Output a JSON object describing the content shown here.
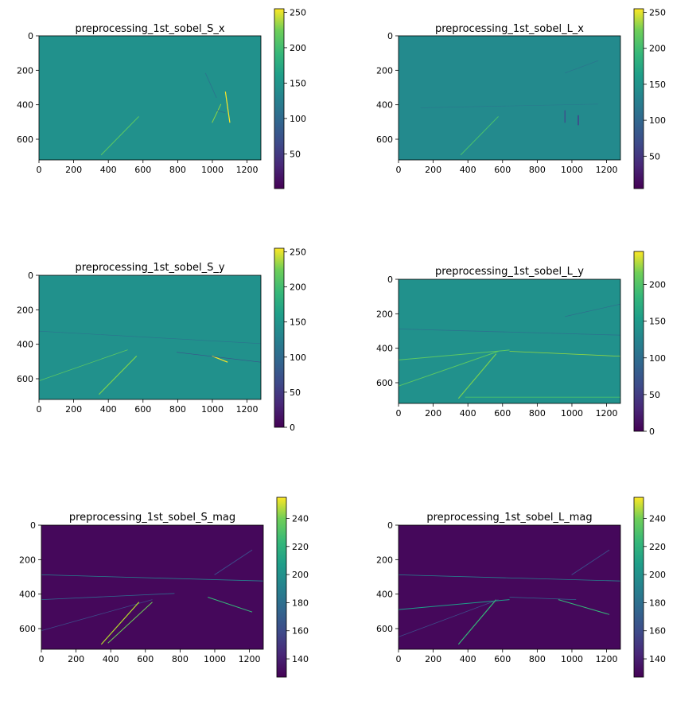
{
  "chart_data": [
    {
      "type": "heatmap",
      "title": "preprocessing_1st_sobel_S_x",
      "xticks": [
        0,
        200,
        400,
        600,
        800,
        1000,
        1200
      ],
      "yticks": [
        0,
        200,
        400,
        600
      ],
      "xlim": [
        0,
        1280
      ],
      "ylim": [
        720,
        0
      ],
      "colorbar": {
        "ticks": [
          50,
          100,
          150,
          200,
          250
        ],
        "range": [
          1,
          255
        ],
        "colormap": "viridis"
      },
      "background_value": 128,
      "features": [
        "faint lane edge diagonal",
        "car edges near x=1000-1100, y=400-500"
      ]
    },
    {
      "type": "heatmap",
      "title": "preprocessing_1st_sobel_L_x",
      "xticks": [
        0,
        200,
        400,
        600,
        800,
        1000,
        1200
      ],
      "yticks": [
        0,
        200,
        400,
        600
      ],
      "xlim": [
        0,
        1280
      ],
      "ylim": [
        720,
        0
      ],
      "colorbar": {
        "ticks": [
          50,
          100,
          150,
          200,
          250
        ],
        "range": [
          5,
          255
        ],
        "colormap": "viridis"
      },
      "background_value": 128,
      "features": [
        "faint lane edge diagonal",
        "vertical edges of cars near x=950-1050"
      ]
    },
    {
      "type": "heatmap",
      "title": "preprocessing_1st_sobel_S_y",
      "xticks": [
        0,
        200,
        400,
        600,
        800,
        1000,
        1200
      ],
      "yticks": [
        0,
        200,
        400,
        600
      ],
      "xlim": [
        0,
        1280
      ],
      "ylim": [
        720,
        0
      ],
      "colorbar": {
        "ticks": [
          0,
          50,
          100,
          150,
          200,
          250
        ],
        "range": [
          0,
          255
        ],
        "colormap": "viridis"
      },
      "background_value": 128,
      "features": [
        "horizon line",
        "lane edges",
        "car edges"
      ]
    },
    {
      "type": "heatmap",
      "title": "preprocessing_1st_sobel_L_y",
      "xticks": [
        0,
        200,
        400,
        600,
        800,
        1000,
        1200
      ],
      "yticks": [
        0,
        200,
        400,
        600
      ],
      "xlim": [
        0,
        1280
      ],
      "ylim": [
        720,
        0
      ],
      "colorbar": {
        "ticks": [
          0,
          50,
          100,
          150,
          200
        ],
        "range": [
          0,
          245
        ],
        "colormap": "viridis"
      },
      "background_value": 128,
      "features": [
        "horizon line",
        "lane edges",
        "car edges",
        "road shading"
      ]
    },
    {
      "type": "heatmap",
      "title": "preprocessing_1st_sobel_S_mag",
      "xticks": [
        0,
        200,
        400,
        600,
        800,
        1000,
        1200
      ],
      "yticks": [
        0,
        200,
        400,
        600
      ],
      "xlim": [
        0,
        1280
      ],
      "ylim": [
        720,
        0
      ],
      "colorbar": {
        "ticks": [
          140,
          160,
          180,
          200,
          220,
          240
        ],
        "range": [
          127,
          255
        ],
        "colormap": "viridis"
      },
      "background_value": 128,
      "features": [
        "gradient magnitude of scene: horizon, trees, lane lines, cars"
      ]
    },
    {
      "type": "heatmap",
      "title": "preprocessing_1st_sobel_L_mag",
      "xticks": [
        0,
        200,
        400,
        600,
        800,
        1000,
        1200
      ],
      "yticks": [
        0,
        200,
        400,
        600
      ],
      "xlim": [
        0,
        1280
      ],
      "ylim": [
        720,
        0
      ],
      "colorbar": {
        "ticks": [
          140,
          160,
          180,
          200,
          220,
          240
        ],
        "range": [
          127,
          255
        ],
        "colormap": "viridis"
      },
      "background_value": 128,
      "features": [
        "gradient magnitude of scene: horizon, trees, lane lines, cars"
      ]
    }
  ]
}
